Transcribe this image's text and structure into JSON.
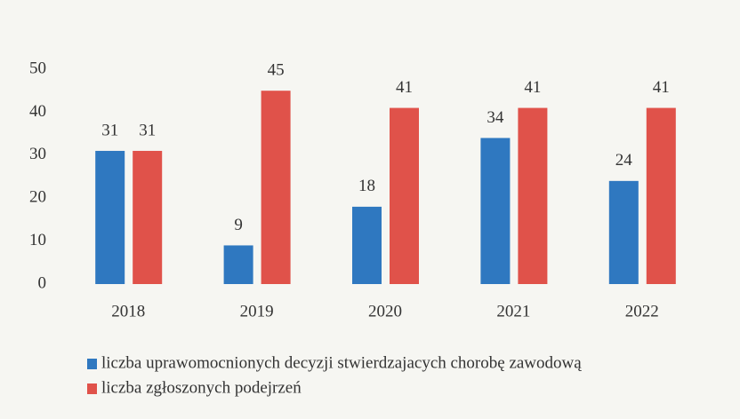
{
  "chart_data": {
    "type": "bar",
    "categories": [
      "2018",
      "2019",
      "2020",
      "2021",
      "2022"
    ],
    "series": [
      {
        "name": "liczba uprawomocnionych decyzji stwierdzajacych chorobę zawodową",
        "color": "#2f78c0",
        "values": [
          31,
          9,
          18,
          34,
          24
        ]
      },
      {
        "name": "liczba zgłoszonych podejrzeń",
        "color": "#e0524a",
        "values": [
          31,
          45,
          41,
          41,
          41
        ]
      }
    ],
    "ylim": [
      0,
      50
    ],
    "yticks": [
      0,
      10,
      20,
      30,
      40,
      50
    ],
    "grid": false,
    "legend": "bottom"
  }
}
